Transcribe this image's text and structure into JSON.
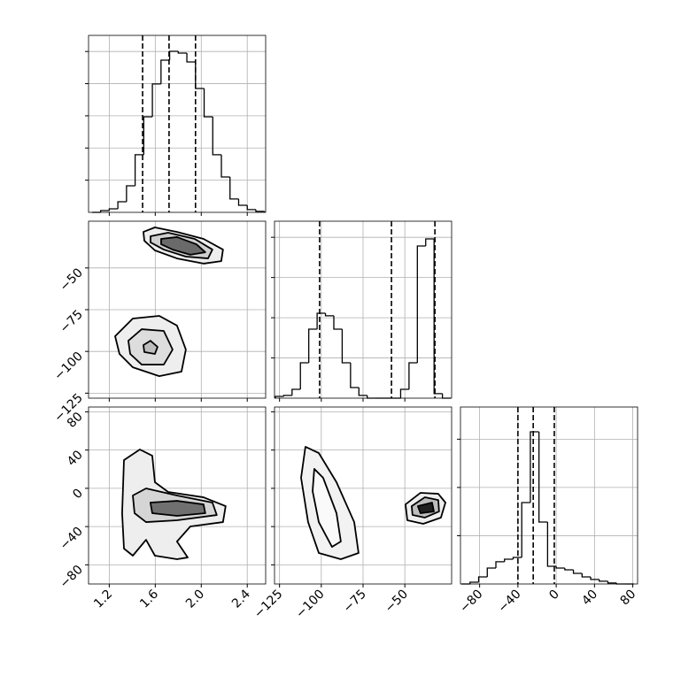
{
  "chart_data": [
    {
      "type": "histogram",
      "bins": [
        1.05,
        1.125,
        1.2,
        1.275,
        1.35,
        1.425,
        1.5,
        1.575,
        1.65,
        1.725,
        1.8,
        1.875,
        1.95,
        2.025,
        2.1,
        2.175,
        2.25,
        2.325,
        2.4,
        2.475,
        2.55
      ],
      "counts": [
        0,
        11,
        22,
        66,
        165,
        358,
        594,
        798,
        946,
        1001,
        990,
        935,
        770,
        594,
        358,
        220,
        83,
        44,
        17,
        6
      ],
      "quantiles": [
        1.49,
        1.72,
        1.95
      ],
      "xlim": [
        1.02,
        2.56
      ],
      "xticks": [
        1.2,
        1.6,
        2.0,
        2.4
      ],
      "ylim": [
        0,
        1100
      ],
      "yticks": [
        200,
        400,
        600,
        800,
        1000
      ],
      "grid": true,
      "color": "#000000"
    },
    {
      "type": "contour",
      "xlim": [
        1.02,
        2.56
      ],
      "xticks": [
        1.2,
        1.6,
        2.0,
        2.4
      ],
      "ylim": [
        -128,
        -22
      ],
      "yticks": [
        {
          "value": -50,
          "label": "−50"
        },
        {
          "value": -75,
          "label": "−75"
        },
        {
          "value": -100,
          "label": "−100"
        },
        {
          "value": -125,
          "label": "−125"
        }
      ],
      "grid": true,
      "contours": [
        {
          "x": [
            1.497,
            1.597,
            1.789,
            2.02,
            2.189,
            2.174,
            2.02,
            1.789,
            1.597,
            1.505
          ],
          "y": [
            -28.4,
            -25.7,
            -28.4,
            -32.6,
            -39,
            -45.9,
            -47.4,
            -44.3,
            -39.5,
            -33.7
          ],
          "fill": "#eeeeee"
        },
        {
          "x": [
            1.559,
            1.712,
            1.943,
            2.097,
            2.059,
            1.866,
            1.674,
            1.559
          ],
          "y": [
            -31,
            -28.9,
            -32.6,
            -39,
            -44.3,
            -43.2,
            -39,
            -34.7
          ],
          "fill": "#cfcfcf"
        },
        {
          "x": [
            1.651,
            1.789,
            1.958,
            2.035,
            1.905,
            1.751,
            1.651
          ],
          "y": [
            -32.6,
            -31.5,
            -35.8,
            -40.6,
            -42.1,
            -39,
            -35.8
          ],
          "fill": "#6a6a6a"
        },
        {
          "x": [
            1.251,
            1.405,
            1.635,
            1.789,
            1.866,
            1.828,
            1.635,
            1.405,
            1.289
          ],
          "y": [
            -90.9,
            -80.3,
            -78.7,
            -84.5,
            -98.9,
            -112.1,
            -114.8,
            -109.5,
            -101.5
          ],
          "fill": "#eeeeee"
        },
        {
          "x": [
            1.366,
            1.482,
            1.674,
            1.751,
            1.674,
            1.482,
            1.382
          ],
          "y": [
            -93.6,
            -86.7,
            -87.7,
            -98.9,
            -107.9,
            -107.9,
            -101.5
          ],
          "fill": "#dddddd"
        },
        {
          "x": [
            1.497,
            1.558,
            1.62,
            1.597,
            1.505
          ],
          "y": [
            -96.2,
            -93.6,
            -97.3,
            -101.5,
            -100.4
          ],
          "fill": "#bdbdbd"
        }
      ]
    },
    {
      "type": "histogram",
      "bins": [
        -127.5,
        -122.5,
        -117.5,
        -112.5,
        -107.5,
        -102.5,
        -97.5,
        -92.5,
        -87.5,
        -82.5,
        -77.5,
        -72.5,
        -67.5,
        -62.5,
        -57.5,
        -52.5,
        -47.5,
        -42.5,
        -37.5,
        -32.5,
        -27.5,
        -22.5
      ],
      "counts": [
        11,
        17,
        55,
        220,
        429,
        528,
        512,
        429,
        220,
        66,
        17,
        0,
        0,
        0,
        0,
        55,
        220,
        946,
        990,
        28,
        0
      ],
      "quantiles": [
        -101,
        -58,
        -32
      ],
      "xlim": [
        -128,
        -22
      ],
      "xticks": [
        -125,
        -100,
        -75,
        -50
      ],
      "ylim": [
        0,
        1100
      ],
      "yticks": [
        250,
        500,
        750,
        1000
      ],
      "grid": true,
      "color": "#000000"
    },
    {
      "type": "contour",
      "xlim": [
        1.02,
        2.56
      ],
      "xticks": [
        {
          "value": 1.2,
          "label": "1.2"
        },
        {
          "value": 1.6,
          "label": "1.6"
        },
        {
          "value": 2.0,
          "label": "2.0"
        },
        {
          "value": 2.4,
          "label": "2.4"
        }
      ],
      "ylim": [
        -100,
        85
      ],
      "yticks": [
        {
          "value": -80,
          "label": "−80"
        },
        {
          "value": -40,
          "label": "−40"
        },
        0,
        40,
        80
      ],
      "grid": true,
      "contours": [
        {
          "x": [
            1.328,
            1.466,
            1.574,
            1.597,
            1.712,
            2.02,
            2.212,
            2.189,
            1.905,
            1.789,
            1.882,
            1.789,
            1.597,
            1.52,
            1.405,
            1.328,
            1.312
          ],
          "y": [
            29.5,
            40.6,
            34.1,
            6.4,
            -3.8,
            -9.4,
            -18.6,
            -35.3,
            -39.9,
            -55.6,
            -72.3,
            -74.1,
            -70.4,
            -53.8,
            -70.4,
            -63,
            -26
          ],
          "fill": "#eeeeee"
        },
        {
          "x": [
            1.405,
            1.52,
            1.789,
            2.097,
            2.135,
            1.789,
            1.52,
            1.42
          ],
          "y": [
            -7.5,
            -0.1,
            -7.5,
            -14.9,
            -27.9,
            -33.4,
            -35.3,
            -26
          ],
          "fill": "#d5d5d5"
        },
        {
          "x": [
            1.558,
            1.789,
            2.02,
            2.035,
            1.789,
            1.574
          ],
          "y": [
            -14.9,
            -13.1,
            -16.8,
            -26,
            -28.8,
            -26
          ],
          "fill": "#707070"
        }
      ]
    },
    {
      "type": "contour",
      "xlim": [
        -128,
        -22
      ],
      "xticks": [
        {
          "value": -125,
          "label": "−125"
        },
        {
          "value": -100,
          "label": "−100"
        },
        {
          "value": -75,
          "label": "−75"
        },
        {
          "value": -50,
          "label": "−50"
        }
      ],
      "ylim": [
        -100,
        85
      ],
      "yticks": [
        -80,
        -40,
        0,
        40,
        80
      ],
      "grid": true,
      "contours": [
        {
          "x": [
            -109.5,
            -101.5,
            -90.9,
            -80.3,
            -77.7,
            -88.3,
            -101.5,
            -107.9,
            -112.1
          ],
          "y": [
            43.4,
            36.9,
            6.4,
            -35.3,
            -67.6,
            -74.1,
            -67.6,
            -35.3,
            11
          ],
          "fill": "#f2f2f2"
        },
        {
          "x": [
            -104.2,
            -98.9,
            -90.9,
            -88.3,
            -93.6,
            -101.5,
            -105.2
          ],
          "y": [
            20.3,
            11,
            -26,
            -55.6,
            -61.2,
            -35.3,
            -2.9
          ],
          "fill": "#fafafa"
        },
        {
          "x": [
            -49.6,
            -40.6,
            -30,
            -25.7,
            -28.4,
            -39,
            -48.5
          ],
          "y": [
            -16.8,
            -4.7,
            -5.7,
            -14.9,
            -30.6,
            -37.1,
            -33.4
          ],
          "fill": "#eeeeee"
        },
        {
          "x": [
            -45.9,
            -38,
            -30,
            -29.5,
            -38,
            -45.4
          ],
          "y": [
            -18.6,
            -9.4,
            -12.2,
            -24.2,
            -30.6,
            -27.9
          ],
          "fill": "#bdbdbd"
        },
        {
          "x": [
            -42.2,
            -33.7,
            -32.6,
            -40.6
          ],
          "y": [
            -18.6,
            -14.9,
            -24.2,
            -26
          ],
          "fill": "#202020"
        }
      ]
    },
    {
      "type": "histogram",
      "bins": [
        -99,
        -90,
        -81,
        -72,
        -63,
        -54,
        -45,
        -36,
        -27,
        -18,
        -9,
        0,
        9,
        18,
        27,
        36,
        45,
        54,
        63,
        72,
        81
      ],
      "counts": [
        0,
        11,
        44,
        99,
        138,
        154,
        165,
        506,
        946,
        385,
        110,
        99,
        88,
        66,
        44,
        28,
        17,
        6,
        0,
        0
      ],
      "quantiles": [
        -40,
        -24,
        -2
      ],
      "xlim": [
        -100,
        85
      ],
      "xticks": [
        {
          "value": -80,
          "label": "−80"
        },
        {
          "value": -40,
          "label": "−40"
        },
        0,
        40,
        80
      ],
      "ylim": [
        0,
        1100
      ],
      "yticks": [
        300,
        600,
        900
      ],
      "grid": true,
      "color": "#000000"
    }
  ]
}
